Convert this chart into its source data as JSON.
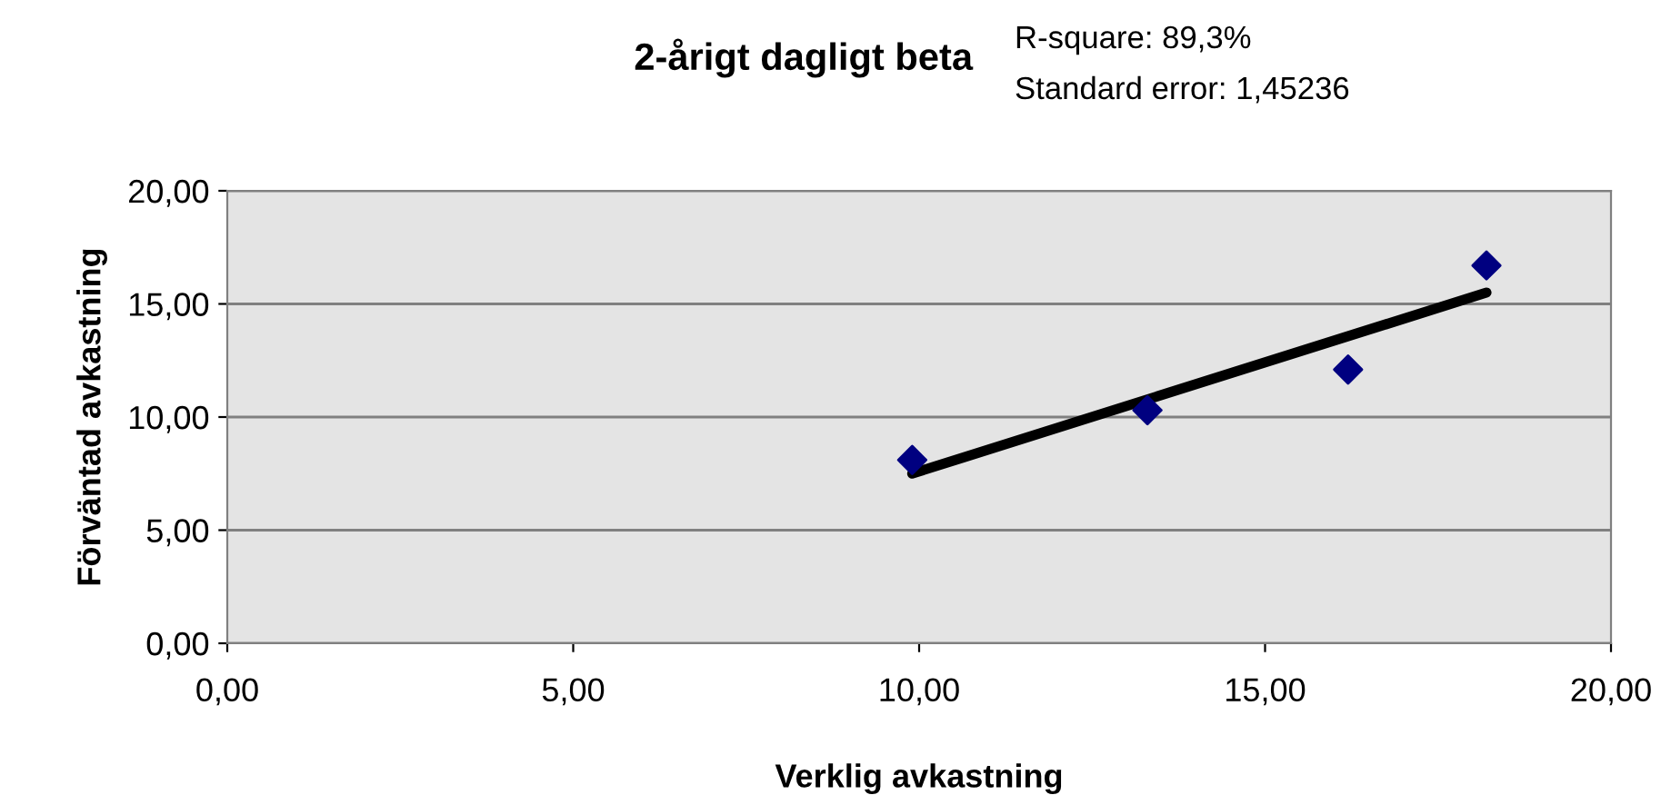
{
  "chart_data": {
    "type": "scatter",
    "title": "2-årigt dagligt beta",
    "annotations": [
      "R-square: 89,3%",
      "Standard error: 1,45236"
    ],
    "xlabel": "Verklig avkastning",
    "ylabel": "Förväntad avkastning",
    "series": [
      {
        "color": "#000080",
        "marker": "diamond",
        "x": [
          9.9,
          13.3,
          16.2,
          18.2
        ],
        "values": [
          8.1,
          10.3,
          12.1,
          16.7
        ]
      },
      {
        "type": "line",
        "color": "#000000",
        "marker": "none",
        "line_style": "solid",
        "x": [
          9.9,
          18.2
        ],
        "values": [
          7.5,
          15.5
        ]
      }
    ],
    "xlim": [
      0,
      20
    ],
    "ylim": [
      0,
      20
    ],
    "xticks": [
      {
        "value": 0,
        "label": "0,00"
      },
      {
        "value": 5,
        "label": "5,00"
      },
      {
        "value": 10,
        "label": "10,00"
      },
      {
        "value": 15,
        "label": "15,00"
      },
      {
        "value": 20,
        "label": "20,00"
      }
    ],
    "yticks": [
      {
        "value": 0,
        "label": "0,00"
      },
      {
        "value": 5,
        "label": "5,00"
      },
      {
        "value": 10,
        "label": "10,00"
      },
      {
        "value": 15,
        "label": "15,00"
      },
      {
        "value": 20,
        "label": "20,00"
      }
    ],
    "grid": "y"
  }
}
